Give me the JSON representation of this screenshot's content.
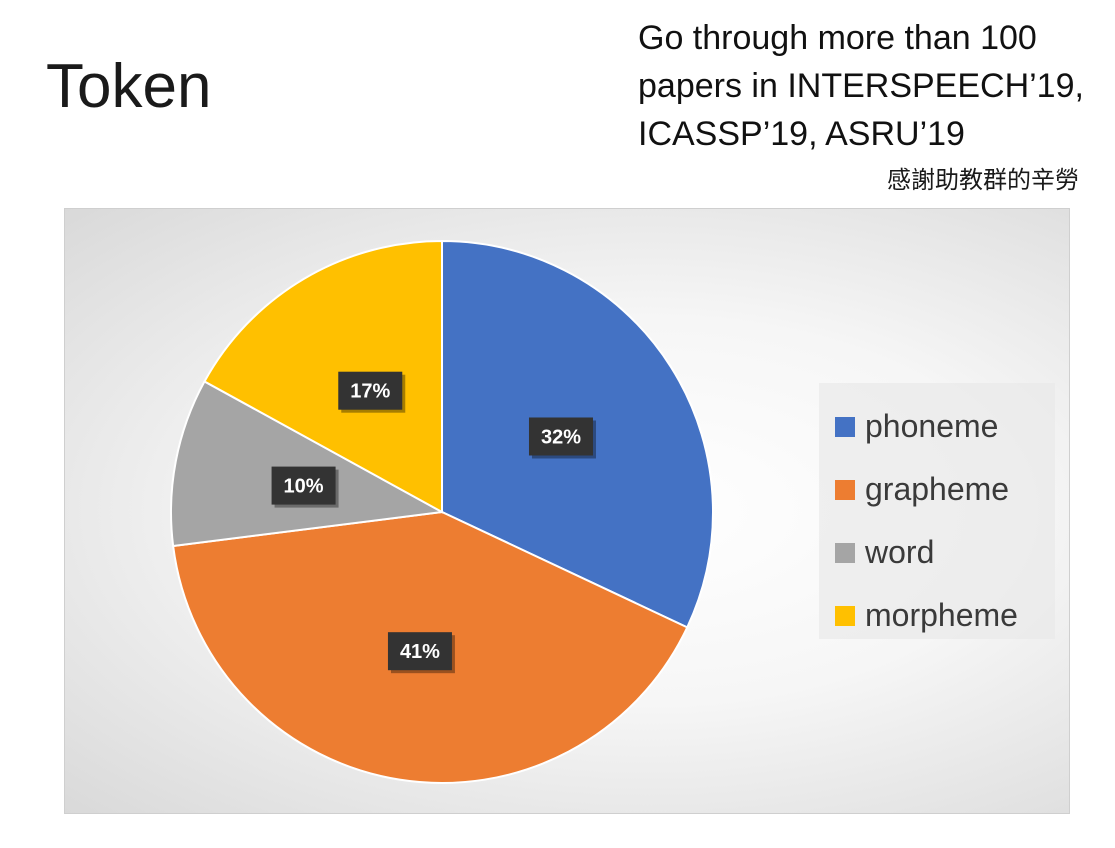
{
  "header": {
    "title": "Token",
    "note_lines": [
      "Go through more than 100",
      "papers in INTERSPEECH’19,",
      "ICASSP’19, ASRU’19"
    ],
    "thanks": "感謝助教群的辛勞"
  },
  "chart_data": {
    "type": "pie",
    "title": "",
    "categories": [
      "phoneme",
      "grapheme",
      "word",
      "morpheme"
    ],
    "values": [
      32,
      41,
      10,
      17
    ],
    "labels": [
      "32%",
      "41%",
      "10%",
      "17%"
    ],
    "colors": [
      "#4472C4",
      "#ED7D31",
      "#A5A5A5",
      "#FFC000"
    ],
    "start_angle_deg": 0,
    "direction": "clockwise",
    "legend_position": "right",
    "data_label_background": "#333333",
    "data_label_color": "#ffffff"
  }
}
